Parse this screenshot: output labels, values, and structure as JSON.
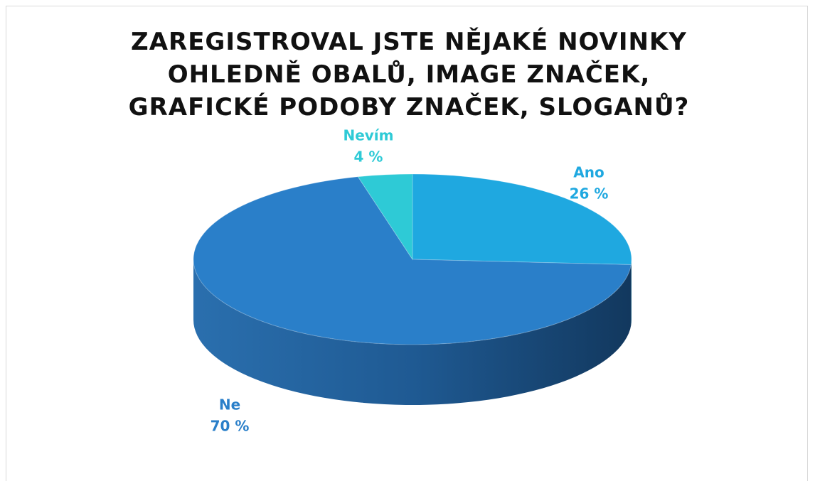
{
  "chart_data": {
    "type": "pie",
    "title": "ZAREGISTROVAL JSTE NĚJAKÉ NOVINKY OHLEDNĚ OBALŮ, IMAGE ZNAČEK, GRAFICKÉ PODOBY ZNAČEK, SLOGANŮ?",
    "categories": [
      "Ano",
      "Ne",
      "Nevím"
    ],
    "values": [
      26,
      70,
      4
    ],
    "value_labels": [
      "26 %",
      "70 %",
      "4 %"
    ],
    "colors": [
      "#1fa8e0",
      "#2a7fc9",
      "#2ecad6"
    ]
  }
}
